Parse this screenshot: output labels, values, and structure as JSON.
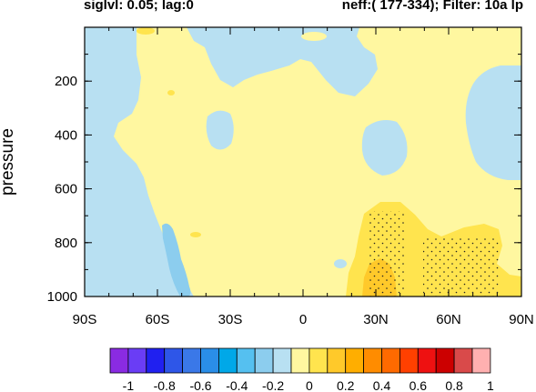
{
  "header": {
    "left": "siglvl: 0.05; lag:0",
    "right": "neff:( 177-334); Filter: 10a lp"
  },
  "chart_data": {
    "type": "contour",
    "title": "",
    "ylabel": "pressure",
    "xlabel": "",
    "x_ticks": [
      {
        "value": -90,
        "label": "90S"
      },
      {
        "value": -60,
        "label": "60S"
      },
      {
        "value": -30,
        "label": "30S"
      },
      {
        "value": 0,
        "label": "0"
      },
      {
        "value": 30,
        "label": "30N"
      },
      {
        "value": 60,
        "label": "60N"
      },
      {
        "value": 90,
        "label": "90N"
      }
    ],
    "y_ticks": [
      {
        "value": 200,
        "label": "200"
      },
      {
        "value": 400,
        "label": "400"
      },
      {
        "value": 600,
        "label": "600"
      },
      {
        "value": 800,
        "label": "800"
      },
      {
        "value": 1000,
        "label": "1000"
      }
    ],
    "xlim": [
      -90,
      90
    ],
    "ylim": [
      0,
      1000
    ],
    "y_inverted": true,
    "background_level": "0 to 0.1",
    "colorbar": {
      "colors": [
        "#8a2be2",
        "#6a3df5",
        "#2020f0",
        "#2e56e8",
        "#3a78e8",
        "#2a8ee8",
        "#00a8e8",
        "#55c0f0",
        "#8ccdee",
        "#b8e0f2",
        "#fff7a0",
        "#ffe44e",
        "#ffc92a",
        "#ffae00",
        "#ff8c00",
        "#ff6a00",
        "#ff4000",
        "#ee1111",
        "#cc0000",
        "#d94a4a",
        "#ffb0b0"
      ],
      "labels": [
        "-1",
        "-0.8",
        "-0.6",
        "-0.4",
        "-0.2",
        "0",
        "0.2",
        "0.4",
        "0.6",
        "0.8",
        "1"
      ]
    },
    "regions": [
      {
        "level": "-0.1 to 0",
        "color": "#b8e0f2",
        "location": "90S-45S, 0-1000 hPa (broad southern negative region)"
      },
      {
        "level": "-0.1 to 0",
        "color": "#b8e0f2",
        "location": "10S-45N, 0-80 hPa (upper strip)"
      },
      {
        "level": "-0.1 to 0",
        "color": "#b8e0f2",
        "location": "40S-30S, 240-340 hPa"
      },
      {
        "level": "-0.1 to 0",
        "color": "#b8e0f2",
        "location": "25N-40N, 330-520 hPa"
      },
      {
        "level": "-0.1 to 0",
        "color": "#b8e0f2",
        "location": "65N-90N, 130-560 hPa"
      },
      {
        "level": "-0.2 to -0.1",
        "color": "#8ccdee",
        "location": "65S-60S, 850-1000 hPa"
      },
      {
        "level": "0.1 to 0.2",
        "color": "#ffe44e",
        "location": "15N-90N, 780-1000 hPa"
      },
      {
        "level": "0.1 to 0.2",
        "color": "#ffe44e",
        "location": "33S-29S, 870-900 hPa"
      },
      {
        "level": "0.2 to 0.3",
        "color": "#ffc92a",
        "location": "23N-32N, 880-1000 hPa"
      }
    ],
    "significance_stippling": [
      {
        "location": "24N-37N, 790-1000 hPa"
      },
      {
        "location": "46N-82N, 890-1000 hPa"
      }
    ]
  }
}
